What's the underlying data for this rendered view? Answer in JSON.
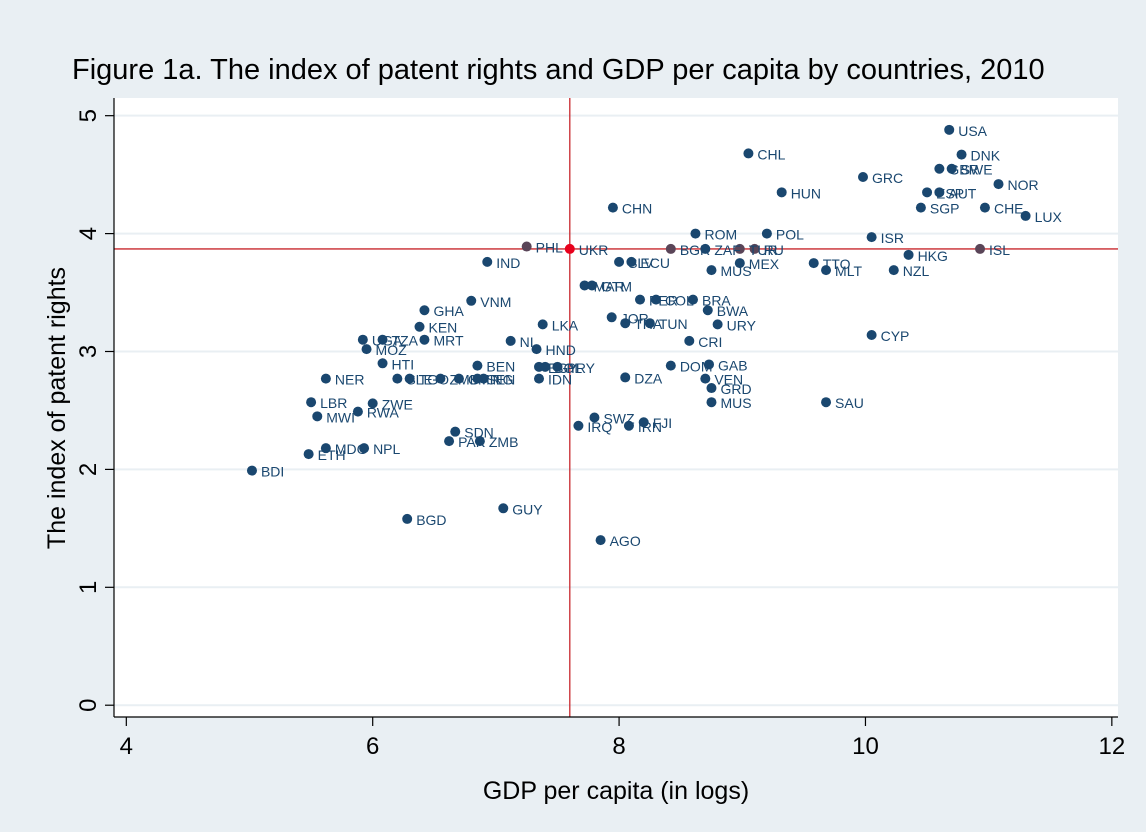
{
  "chart_data": {
    "type": "scatter",
    "title": "Figure 1a. The index of patent rights and GDP per capita by countries, 2010",
    "xlabel": "GDP per capita (in logs)",
    "ylabel": "The index of patent rights",
    "xlim": [
      3.9,
      12.05
    ],
    "ylim": [
      -0.1,
      5.15
    ],
    "xticks": [
      4,
      6,
      8,
      10,
      12
    ],
    "yticks": [
      0,
      1,
      2,
      3,
      4,
      5
    ],
    "grid": true,
    "reference_lines": {
      "x": 7.6,
      "y": 3.87
    },
    "colors": {
      "background": "#e9eff3",
      "plot_background": "#ffffff",
      "grid": "#e9eff3",
      "marker": "#1a476f",
      "marker_highlight": "#e8001c",
      "marker_other": "#5a4558",
      "reference_line": "#c8282d",
      "axis": "#000000"
    },
    "points": [
      {
        "label": "USA",
        "x": 10.68,
        "y": 4.88
      },
      {
        "label": "CHL",
        "x": 9.05,
        "y": 4.68
      },
      {
        "label": "DNK",
        "x": 10.78,
        "y": 4.67
      },
      {
        "label": "SWE",
        "x": 10.7,
        "y": 4.55
      },
      {
        "label": "GBR",
        "x": 10.6,
        "y": 4.55
      },
      {
        "label": "GRC",
        "x": 9.98,
        "y": 4.48
      },
      {
        "label": "NOR",
        "x": 11.08,
        "y": 4.42
      },
      {
        "label": "HUN",
        "x": 9.32,
        "y": 4.35
      },
      {
        "label": "AUT",
        "x": 10.6,
        "y": 4.35
      },
      {
        "label": "ESP",
        "x": 10.5,
        "y": 4.35
      },
      {
        "label": "CHN",
        "x": 7.95,
        "y": 4.22
      },
      {
        "label": "SGP",
        "x": 10.45,
        "y": 4.22
      },
      {
        "label": "CHE",
        "x": 10.97,
        "y": 4.22
      },
      {
        "label": "LUX",
        "x": 11.3,
        "y": 4.15
      },
      {
        "label": "ROM",
        "x": 8.62,
        "y": 4.0
      },
      {
        "label": "POL",
        "x": 9.2,
        "y": 4.0
      },
      {
        "label": "ISR",
        "x": 10.05,
        "y": 3.97
      },
      {
        "label": "PHL",
        "x": 7.25,
        "y": 3.89
      },
      {
        "label": "UKR",
        "x": 7.6,
        "y": 3.87
      },
      {
        "label": "ISL",
        "x": 10.93,
        "y": 3.87
      },
      {
        "label": "BGR",
        "x": 8.42,
        "y": 3.87
      },
      {
        "label": "ZAF",
        "x": 8.7,
        "y": 3.87
      },
      {
        "label": "TUR",
        "x": 8.98,
        "y": 3.87
      },
      {
        "label": "RU",
        "x": 9.1,
        "y": 3.87
      },
      {
        "label": "HKG",
        "x": 10.35,
        "y": 3.82
      },
      {
        "label": "IND",
        "x": 6.93,
        "y": 3.76
      },
      {
        "label": "SLV",
        "x": 8.0,
        "y": 3.76
      },
      {
        "label": "ECU",
        "x": 8.1,
        "y": 3.76
      },
      {
        "label": "MEX",
        "x": 8.98,
        "y": 3.75
      },
      {
        "label": "TTO",
        "x": 9.58,
        "y": 3.75
      },
      {
        "label": "MUS",
        "x": 8.75,
        "y": 3.69
      },
      {
        "label": "MLT",
        "x": 9.68,
        "y": 3.69
      },
      {
        "label": "NZL",
        "x": 10.23,
        "y": 3.69
      },
      {
        "label": "MAR",
        "x": 7.72,
        "y": 3.56
      },
      {
        "label": "GTM",
        "x": 7.78,
        "y": 3.56
      },
      {
        "label": "VNM",
        "x": 6.8,
        "y": 3.43
      },
      {
        "label": "PER",
        "x": 8.17,
        "y": 3.44
      },
      {
        "label": "COL",
        "x": 8.3,
        "y": 3.44
      },
      {
        "label": "BRA",
        "x": 8.6,
        "y": 3.44
      },
      {
        "label": "GHA",
        "x": 6.42,
        "y": 3.35
      },
      {
        "label": "BWA",
        "x": 8.72,
        "y": 3.35
      },
      {
        "label": "JOR",
        "x": 7.94,
        "y": 3.29
      },
      {
        "label": "THA",
        "x": 8.05,
        "y": 3.24
      },
      {
        "label": "TUN",
        "x": 8.25,
        "y": 3.24
      },
      {
        "label": "URY",
        "x": 8.8,
        "y": 3.23
      },
      {
        "label": "LKA",
        "x": 7.38,
        "y": 3.23
      },
      {
        "label": "KEN",
        "x": 6.38,
        "y": 3.21
      },
      {
        "label": "CYP",
        "x": 10.05,
        "y": 3.14
      },
      {
        "label": "UGA",
        "x": 5.92,
        "y": 3.1
      },
      {
        "label": "TZA",
        "x": 6.08,
        "y": 3.1
      },
      {
        "label": "MRT",
        "x": 6.42,
        "y": 3.1
      },
      {
        "label": "NI",
        "x": 7.12,
        "y": 3.09
      },
      {
        "label": "CRI",
        "x": 8.57,
        "y": 3.09
      },
      {
        "label": "MOZ",
        "x": 5.95,
        "y": 3.02
      },
      {
        "label": "HND",
        "x": 7.33,
        "y": 3.02
      },
      {
        "label": "HTI",
        "x": 6.08,
        "y": 2.9
      },
      {
        "label": "BEN",
        "x": 6.85,
        "y": 2.88
      },
      {
        "label": "BOL",
        "x": 7.4,
        "y": 2.87
      },
      {
        "label": "PRY",
        "x": 7.5,
        "y": 2.87
      },
      {
        "label": "EGY",
        "x": 7.35,
        "y": 2.87
      },
      {
        "label": "DOM",
        "x": 8.42,
        "y": 2.88
      },
      {
        "label": "GAB",
        "x": 8.73,
        "y": 2.89
      },
      {
        "label": "NER",
        "x": 5.62,
        "y": 2.77
      },
      {
        "label": "SEN",
        "x": 6.85,
        "y": 2.77
      },
      {
        "label": "TGO",
        "x": 6.3,
        "y": 2.77
      },
      {
        "label": "SLE",
        "x": 6.2,
        "y": 2.77
      },
      {
        "label": "ZMB",
        "x": 6.55,
        "y": 2.77
      },
      {
        "label": "CMR",
        "x": 6.7,
        "y": 2.77
      },
      {
        "label": "NG",
        "x": 6.9,
        "y": 2.77
      },
      {
        "label": "IDN",
        "x": 7.35,
        "y": 2.77
      },
      {
        "label": "DZA",
        "x": 8.05,
        "y": 2.78
      },
      {
        "label": "VEN",
        "x": 8.7,
        "y": 2.77
      },
      {
        "label": "GRD",
        "x": 8.75,
        "y": 2.69
      },
      {
        "label": "MUS",
        "x": 8.75,
        "y": 2.57
      },
      {
        "label": "SAU",
        "x": 9.68,
        "y": 2.57
      },
      {
        "label": "LBR",
        "x": 5.5,
        "y": 2.57
      },
      {
        "label": "ZWE",
        "x": 6.0,
        "y": 2.56
      },
      {
        "label": "RWA",
        "x": 5.88,
        "y": 2.49
      },
      {
        "label": "MWI",
        "x": 5.55,
        "y": 2.45
      },
      {
        "label": "SWZ",
        "x": 7.8,
        "y": 2.44
      },
      {
        "label": "FJI",
        "x": 8.2,
        "y": 2.4
      },
      {
        "label": "IRQ",
        "x": 7.67,
        "y": 2.37
      },
      {
        "label": "IRN",
        "x": 8.08,
        "y": 2.37
      },
      {
        "label": "SDN",
        "x": 6.67,
        "y": 2.32
      },
      {
        "label": "PAK",
        "x": 6.62,
        "y": 2.24
      },
      {
        "label": "ZMB",
        "x": 6.87,
        "y": 2.24
      },
      {
        "label": "MDG",
        "x": 5.62,
        "y": 2.18
      },
      {
        "label": "NPL",
        "x": 5.93,
        "y": 2.18
      },
      {
        "label": "ETH",
        "x": 5.48,
        "y": 2.13
      },
      {
        "label": "BDI",
        "x": 5.02,
        "y": 1.99
      },
      {
        "label": "GUY",
        "x": 7.06,
        "y": 1.67
      },
      {
        "label": "BGD",
        "x": 6.28,
        "y": 1.58
      },
      {
        "label": "AGO",
        "x": 7.85,
        "y": 1.4
      }
    ]
  }
}
